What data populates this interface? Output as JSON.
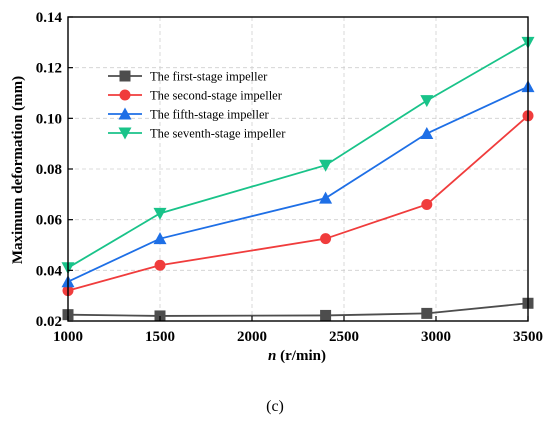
{
  "chart_data": {
    "type": "line",
    "xlabel": {
      "prefix": "n",
      "unit": " (r/min)"
    },
    "ylabel": "Maximum deformation (mm)",
    "x": [
      1000,
      1500,
      2400,
      2950,
      3500
    ],
    "xlim": [
      1000,
      3500
    ],
    "ylim": [
      0.02,
      0.14
    ],
    "xticks": [
      "1000",
      "1500",
      "2000",
      "2500",
      "3000",
      "3500"
    ],
    "xtick_values": [
      1000,
      1500,
      2000,
      2500,
      3000,
      3500
    ],
    "yticks": [
      "0.02",
      "0.04",
      "0.06",
      "0.08",
      "0.10",
      "0.12",
      "0.14"
    ],
    "ytick_values": [
      0.02,
      0.04,
      0.06,
      0.08,
      0.1,
      0.12,
      0.14
    ],
    "grid": "dashed",
    "legend_position": "upper-left",
    "series": [
      {
        "name": "The first-stage impeller",
        "values": [
          0.0225,
          0.022,
          0.0222,
          0.023,
          0.027
        ],
        "color": "#4d4d4d",
        "marker": "square"
      },
      {
        "name": "The second-stage impeller",
        "values": [
          0.032,
          0.042,
          0.0525,
          0.066,
          0.101
        ],
        "color": "#f03c3c",
        "marker": "circle"
      },
      {
        "name": "The fifth-stage impeller",
        "values": [
          0.0355,
          0.0525,
          0.0685,
          0.094,
          0.1125
        ],
        "color": "#1e6fe6",
        "marker": "triangle-up"
      },
      {
        "name": "The seventh-stage impeller",
        "values": [
          0.041,
          0.0625,
          0.0815,
          0.107,
          0.13
        ],
        "color": "#19c389",
        "marker": "triangle-down"
      }
    ]
  },
  "caption": "(c)"
}
